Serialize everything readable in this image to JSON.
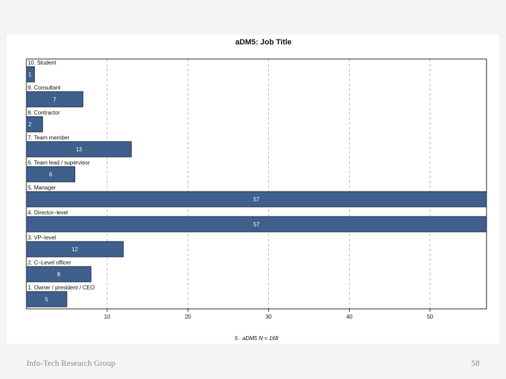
{
  "footer": {
    "organization": "Info-Tech Research Group",
    "page_number": "58"
  },
  "colors": {
    "bar_fill": "#3f5f8c",
    "bar_stroke": "#1e2c44",
    "grid": "#bbbbbb"
  },
  "chart_data": {
    "type": "bar",
    "orientation": "horizontal",
    "title": "aDM5: Job Title",
    "caption": "5 .  aDM5   N = 168",
    "categories": [
      "10. Student",
      "9. Consultant",
      "8. Contractor",
      "7. Team member",
      "6. Team lead / supervisor",
      "5. Manager",
      "4. Director–level",
      "3. VP–level",
      "2. C–Level officer",
      "1. Owner / president / CEO"
    ],
    "values": [
      1,
      7,
      2,
      13,
      6,
      57,
      57,
      12,
      8,
      5
    ],
    "x_ticks": [
      10,
      20,
      30,
      40,
      50
    ],
    "xlim": [
      0,
      57
    ],
    "grid": "vertical-dashed"
  }
}
